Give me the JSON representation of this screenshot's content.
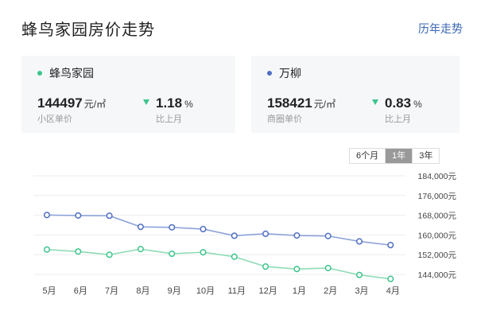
{
  "title": "蜂鸟家园房价走势",
  "history_link": "历年走势",
  "cards": [
    {
      "name": "蜂鸟家园",
      "price": "144497",
      "unit": "元/㎡",
      "price_label": "小区单价",
      "change": "1.18",
      "change_unit": "%",
      "change_label": "比上月",
      "dot_color": "#3bc58b"
    },
    {
      "name": "万柳",
      "price": "158421",
      "unit": "元/㎡",
      "price_label": "商圈单价",
      "change": "0.83",
      "change_unit": "%",
      "change_label": "比上月",
      "dot_color": "#4f6fc2"
    }
  ],
  "range_tabs": [
    {
      "label": "6个月",
      "active": false
    },
    {
      "label": "1年",
      "active": true
    },
    {
      "label": "3年",
      "active": false
    }
  ],
  "chart_data": {
    "type": "line",
    "categories": [
      "5月",
      "6月",
      "7月",
      "8月",
      "9月",
      "10月",
      "11月",
      "12月",
      "1月",
      "2月",
      "3月",
      "4月"
    ],
    "y_tick_labels": [
      "184,000元",
      "176,000元",
      "168,000元",
      "160,000元",
      "152,000元",
      "144,000元"
    ],
    "y_ticks": [
      184000,
      176000,
      168000,
      160000,
      152000,
      144000
    ],
    "ylim": [
      144000,
      184000
    ],
    "grid": true,
    "series": [
      {
        "name": "万柳",
        "color": "#8ea3d9",
        "marker_color": "#4f6fc2",
        "values": [
          168100,
          167900,
          167800,
          163300,
          163100,
          162400,
          159700,
          160500,
          159800,
          159600,
          157400,
          155900
        ]
      },
      {
        "name": "蜂鸟家园",
        "color": "#8fdcb6",
        "marker_color": "#3bc58b",
        "values": [
          154100,
          153300,
          152000,
          154300,
          152400,
          153000,
          151200,
          147200,
          146200,
          146600,
          143800,
          142200
        ]
      }
    ]
  }
}
